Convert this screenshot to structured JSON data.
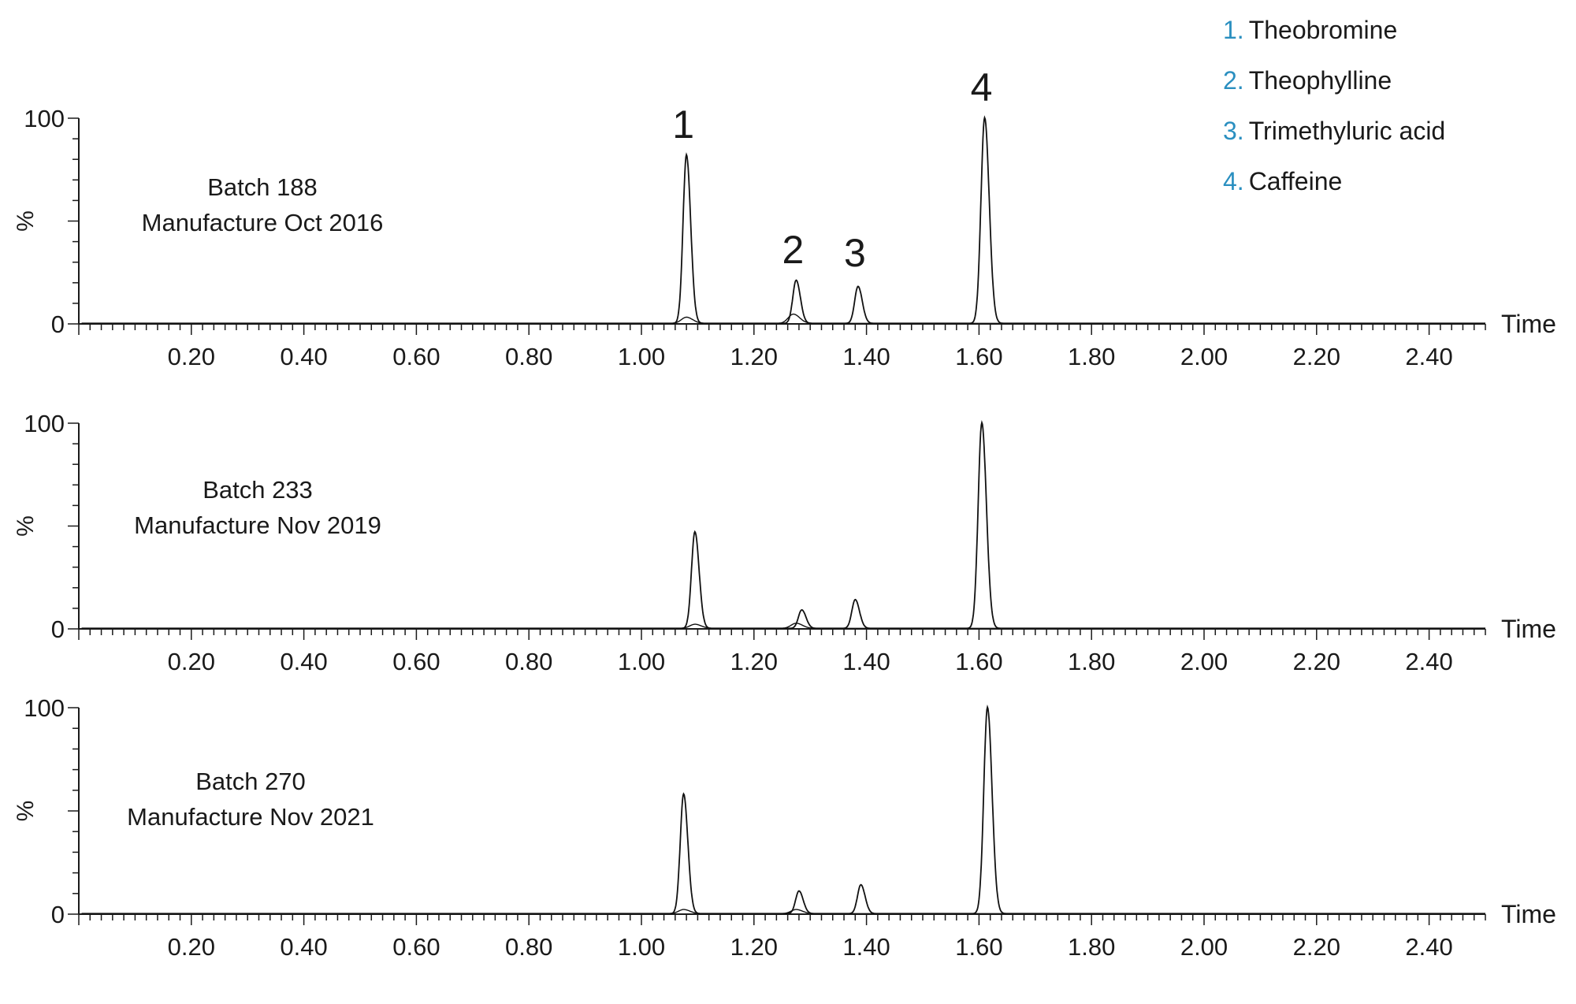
{
  "legend": {
    "items": [
      {
        "number": "1.",
        "name": "Theobromine"
      },
      {
        "number": "2.",
        "name": "Theophylline"
      },
      {
        "number": "3.",
        "name": "Trimethyluric acid"
      },
      {
        "number": "4.",
        "name": "Caffeine"
      }
    ],
    "number_color": "#2a8fc0"
  },
  "chart_data": [
    {
      "type": "line",
      "panel_label": [
        "Batch 188",
        "Manufacture Oct 2016"
      ],
      "xlabel": "Time",
      "ylabel": "%",
      "xlim": [
        0.0,
        2.5
      ],
      "ylim": [
        0,
        100
      ],
      "xticks": [
        "0.20",
        "0.40",
        "0.60",
        "0.80",
        "1.00",
        "1.20",
        "1.40",
        "1.60",
        "1.80",
        "2.00",
        "2.20",
        "2.40"
      ],
      "yticks": [
        "0",
        "100"
      ],
      "peak_labels": [
        "1",
        "2",
        "3",
        "4"
      ],
      "series": [
        {
          "values": [
            [
              1.08,
              82
            ],
            [
              1.275,
              21
            ],
            [
              1.385,
              18
            ],
            [
              1.61,
              100
            ]
          ]
        },
        {
          "values": [
            [
              1.08,
              3
            ],
            [
              1.27,
              4.5
            ]
          ]
        }
      ]
    },
    {
      "type": "line",
      "panel_label": [
        "Batch 233",
        "Manufacture Nov 2019"
      ],
      "xlabel": "Time",
      "ylabel": "%",
      "xlim": [
        0.0,
        2.5
      ],
      "ylim": [
        0,
        100
      ],
      "xticks": [
        "0.20",
        "0.40",
        "0.60",
        "0.80",
        "1.00",
        "1.20",
        "1.40",
        "1.60",
        "1.80",
        "2.00",
        "2.20",
        "2.40"
      ],
      "yticks": [
        "0",
        "100"
      ],
      "series": [
        {
          "values": [
            [
              1.095,
              47
            ],
            [
              1.285,
              9
            ],
            [
              1.38,
              14
            ],
            [
              1.605,
              100
            ]
          ]
        },
        {
          "values": [
            [
              1.095,
              2
            ],
            [
              1.275,
              2.5
            ]
          ]
        }
      ]
    },
    {
      "type": "line",
      "panel_label": [
        "Batch 270",
        "Manufacture Nov 2021"
      ],
      "xlabel": "Time",
      "ylabel": "%",
      "xlim": [
        0.0,
        2.5
      ],
      "ylim": [
        0,
        100
      ],
      "xticks": [
        "0.20",
        "0.40",
        "0.60",
        "0.80",
        "1.00",
        "1.20",
        "1.40",
        "1.60",
        "1.80",
        "2.00",
        "2.20",
        "2.40"
      ],
      "yticks": [
        "0",
        "100"
      ],
      "series": [
        {
          "values": [
            [
              1.075,
              58
            ],
            [
              1.28,
              11
            ],
            [
              1.39,
              14
            ],
            [
              1.615,
              100
            ]
          ]
        },
        {
          "values": [
            [
              1.075,
              2
            ],
            [
              1.275,
              2
            ]
          ]
        }
      ]
    }
  ]
}
